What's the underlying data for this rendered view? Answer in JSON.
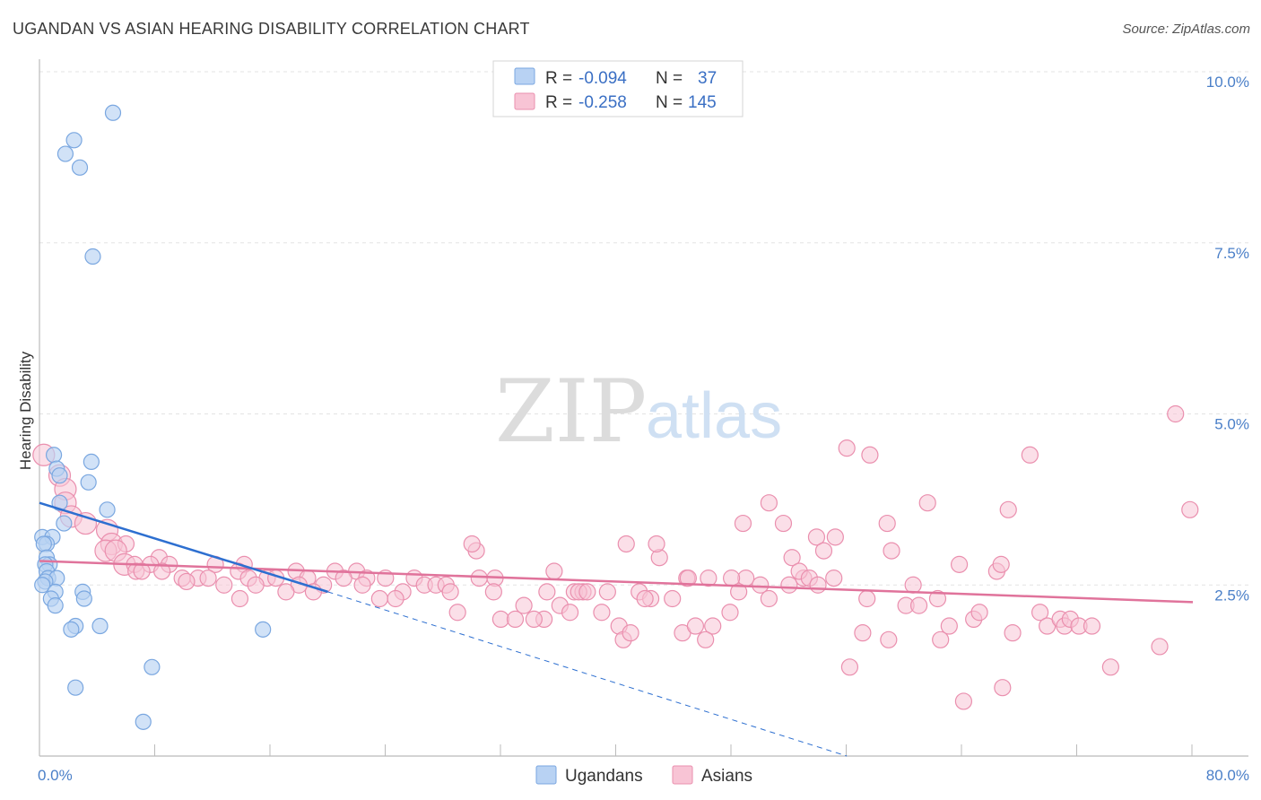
{
  "header": {
    "title": "UGANDAN VS ASIAN HEARING DISABILITY CORRELATION CHART",
    "source": "Source: ZipAtlas.com"
  },
  "colors": {
    "ugandans_fill": "#b8d2f3",
    "ugandans_stroke": "#7aa7e0",
    "ugandans_line": "#2d6fd0",
    "asians_fill": "#f8c4d5",
    "asians_stroke": "#ea8fae",
    "asians_line": "#e0739b",
    "grid": "#e3e3e3",
    "axis": "#bbbbbb"
  },
  "watermark": {
    "zip": "ZIP",
    "atlas": "atlas"
  },
  "legend": {
    "rows": [
      {
        "r_label": "R = ",
        "r_value": "-0.094",
        "n_label": "N = ",
        "n_value": "37"
      },
      {
        "r_label": "R = ",
        "r_value": "-0.258",
        "n_label": "N = ",
        "n_value": "145"
      }
    ]
  },
  "chart_data": {
    "type": "scatter",
    "title": "UGANDAN VS ASIAN HEARING DISABILITY CORRELATION CHART",
    "xlabel": "",
    "ylabel": "Hearing Disability",
    "xlim": [
      0,
      80
    ],
    "ylim": [
      0,
      10
    ],
    "x_tick_labels": [
      {
        "value": 0,
        "label": "0.0%"
      },
      {
        "value": 80,
        "label": "80.0%"
      }
    ],
    "y_ticks": [
      {
        "value": 2.5,
        "label": "2.5%"
      },
      {
        "value": 5.0,
        "label": "5.0%"
      },
      {
        "value": 7.5,
        "label": "7.5%"
      },
      {
        "value": 10.0,
        "label": "10.0%"
      }
    ],
    "x_minor_ticks": [
      8,
      16,
      24,
      32,
      40,
      48,
      56,
      64,
      72,
      80
    ],
    "grid": true,
    "legend_position": "bottom-center",
    "series": [
      {
        "name": "Ugandans",
        "r": -0.094,
        "n": 37,
        "trend": {
          "x0": 0,
          "y0": 3.7,
          "x_solid_end": 20,
          "y_solid_end": 2.4,
          "x_dash_end": 56,
          "y_dash_end": 0.0
        },
        "points": [
          [
            5.1,
            9.4
          ],
          [
            2.4,
            9.0
          ],
          [
            1.8,
            8.8
          ],
          [
            2.8,
            8.6
          ],
          [
            3.7,
            7.3
          ],
          [
            1.0,
            4.4
          ],
          [
            3.6,
            4.3
          ],
          [
            1.2,
            4.2
          ],
          [
            1.4,
            4.1
          ],
          [
            3.4,
            4.0
          ],
          [
            1.4,
            3.7
          ],
          [
            4.7,
            3.6
          ],
          [
            1.7,
            3.4
          ],
          [
            0.2,
            3.2
          ],
          [
            0.9,
            3.2
          ],
          [
            0.5,
            3.1
          ],
          [
            0.3,
            3.1
          ],
          [
            0.5,
            2.9
          ],
          [
            0.7,
            2.8
          ],
          [
            0.4,
            2.8
          ],
          [
            0.5,
            2.7
          ],
          [
            0.6,
            2.6
          ],
          [
            1.2,
            2.6
          ],
          [
            0.4,
            2.55
          ],
          [
            0.2,
            2.5
          ],
          [
            1.1,
            2.4
          ],
          [
            3.0,
            2.4
          ],
          [
            0.8,
            2.3
          ],
          [
            3.1,
            2.3
          ],
          [
            1.1,
            2.2
          ],
          [
            2.5,
            1.9
          ],
          [
            4.2,
            1.9
          ],
          [
            2.2,
            1.85
          ],
          [
            15.5,
            1.85
          ],
          [
            7.8,
            1.3
          ],
          [
            2.5,
            1.0
          ],
          [
            7.2,
            0.5
          ]
        ]
      },
      {
        "name": "Asians",
        "r": -0.258,
        "n": 145,
        "trend": {
          "x0": 0,
          "y0": 2.85,
          "x1": 80,
          "y1": 2.25
        },
        "points": [
          [
            0.3,
            4.4
          ],
          [
            1.4,
            4.1
          ],
          [
            1.8,
            3.9
          ],
          [
            1.8,
            3.7
          ],
          [
            2.2,
            3.5
          ],
          [
            3.2,
            3.4
          ],
          [
            4.7,
            3.3
          ],
          [
            5.0,
            3.1
          ],
          [
            6.0,
            3.1
          ],
          [
            4.6,
            3.0
          ],
          [
            5.3,
            3.0
          ],
          [
            8.3,
            2.9
          ],
          [
            5.9,
            2.8
          ],
          [
            6.6,
            2.8
          ],
          [
            7.7,
            2.8
          ],
          [
            9.0,
            2.8
          ],
          [
            12.2,
            2.8
          ],
          [
            14.2,
            2.8
          ],
          [
            6.7,
            2.7
          ],
          [
            7.1,
            2.7
          ],
          [
            8.5,
            2.7
          ],
          [
            13.8,
            2.7
          ],
          [
            17.8,
            2.7
          ],
          [
            20.5,
            2.7
          ],
          [
            22.0,
            2.7
          ],
          [
            9.9,
            2.6
          ],
          [
            11.0,
            2.6
          ],
          [
            11.7,
            2.6
          ],
          [
            14.5,
            2.6
          ],
          [
            15.8,
            2.6
          ],
          [
            16.4,
            2.6
          ],
          [
            18.6,
            2.6
          ],
          [
            21.1,
            2.6
          ],
          [
            22.7,
            2.6
          ],
          [
            24.0,
            2.6
          ],
          [
            26.0,
            2.6
          ],
          [
            10.2,
            2.55
          ],
          [
            12.8,
            2.5
          ],
          [
            18.0,
            2.5
          ],
          [
            19.7,
            2.5
          ],
          [
            22.4,
            2.5
          ],
          [
            26.7,
            2.5
          ],
          [
            27.5,
            2.5
          ],
          [
            28.2,
            2.5
          ],
          [
            30.5,
            2.6
          ],
          [
            31.6,
            2.6
          ],
          [
            17.1,
            2.4
          ],
          [
            19.0,
            2.4
          ],
          [
            25.2,
            2.4
          ],
          [
            28.5,
            2.4
          ],
          [
            15.0,
            2.5
          ],
          [
            13.9,
            2.3
          ],
          [
            23.6,
            2.3
          ],
          [
            24.7,
            2.3
          ],
          [
            31.5,
            2.4
          ],
          [
            35.2,
            2.4
          ],
          [
            37.1,
            2.4
          ],
          [
            39.4,
            2.4
          ],
          [
            41.6,
            2.4
          ],
          [
            29.0,
            2.1
          ],
          [
            32.0,
            2.0
          ],
          [
            33.6,
            2.2
          ],
          [
            35.0,
            2.0
          ],
          [
            36.1,
            2.2
          ],
          [
            37.7,
            2.4
          ],
          [
            39.0,
            2.1
          ],
          [
            33.0,
            2.0
          ],
          [
            34.3,
            2.0
          ],
          [
            37.4,
            2.4
          ],
          [
            42.4,
            2.3
          ],
          [
            43.9,
            2.3
          ],
          [
            44.9,
            2.6
          ],
          [
            46.4,
            2.6
          ],
          [
            47.9,
            2.1
          ],
          [
            49.0,
            2.6
          ],
          [
            50.0,
            2.5
          ],
          [
            50.6,
            2.3
          ],
          [
            52.0,
            2.5
          ],
          [
            53.0,
            2.6
          ],
          [
            48.0,
            2.6
          ],
          [
            40.2,
            1.9
          ],
          [
            40.5,
            1.7
          ],
          [
            41.0,
            1.8
          ],
          [
            44.6,
            1.8
          ],
          [
            45.5,
            1.9
          ],
          [
            46.7,
            1.9
          ],
          [
            46.2,
            1.7
          ],
          [
            48.8,
            3.4
          ],
          [
            50.6,
            3.7
          ],
          [
            51.6,
            3.4
          ],
          [
            52.2,
            2.9
          ],
          [
            52.7,
            2.7
          ],
          [
            53.9,
            3.2
          ],
          [
            53.4,
            2.6
          ],
          [
            54.4,
            3.0
          ],
          [
            55.2,
            3.2
          ],
          [
            56.0,
            4.5
          ],
          [
            57.6,
            4.4
          ],
          [
            58.8,
            3.4
          ],
          [
            59.1,
            3.0
          ],
          [
            55.1,
            2.6
          ],
          [
            57.4,
            2.3
          ],
          [
            57.1,
            1.8
          ],
          [
            60.1,
            2.2
          ],
          [
            60.6,
            2.5
          ],
          [
            61.0,
            2.2
          ],
          [
            61.6,
            3.7
          ],
          [
            62.3,
            2.3
          ],
          [
            63.1,
            1.9
          ],
          [
            63.8,
            2.8
          ],
          [
            64.8,
            2.0
          ],
          [
            65.2,
            2.1
          ],
          [
            66.4,
            2.7
          ],
          [
            66.7,
            2.8
          ],
          [
            67.2,
            3.6
          ],
          [
            67.5,
            1.8
          ],
          [
            68.7,
            4.4
          ],
          [
            69.4,
            2.1
          ],
          [
            69.9,
            1.9
          ],
          [
            70.8,
            2.0
          ],
          [
            71.1,
            1.9
          ],
          [
            71.5,
            2.0
          ],
          [
            72.1,
            1.9
          ],
          [
            73.0,
            1.9
          ],
          [
            74.3,
            1.3
          ],
          [
            77.7,
            1.6
          ],
          [
            78.8,
            5.0
          ],
          [
            79.8,
            3.6
          ],
          [
            56.2,
            1.3
          ],
          [
            58.9,
            1.7
          ],
          [
            62.5,
            1.7
          ],
          [
            64.1,
            0.8
          ],
          [
            66.8,
            1.0
          ],
          [
            54.0,
            2.5
          ],
          [
            45.0,
            2.6
          ],
          [
            48.5,
            2.4
          ],
          [
            43.0,
            2.9
          ],
          [
            42.8,
            3.1
          ],
          [
            40.7,
            3.1
          ],
          [
            35.7,
            2.7
          ],
          [
            38.0,
            2.4
          ],
          [
            42.0,
            2.3
          ],
          [
            36.8,
            2.1
          ],
          [
            30.3,
            3.0
          ],
          [
            30.0,
            3.1
          ]
        ]
      }
    ]
  },
  "bottom_legend": [
    {
      "label": "Ugandans"
    },
    {
      "label": "Asians"
    }
  ]
}
